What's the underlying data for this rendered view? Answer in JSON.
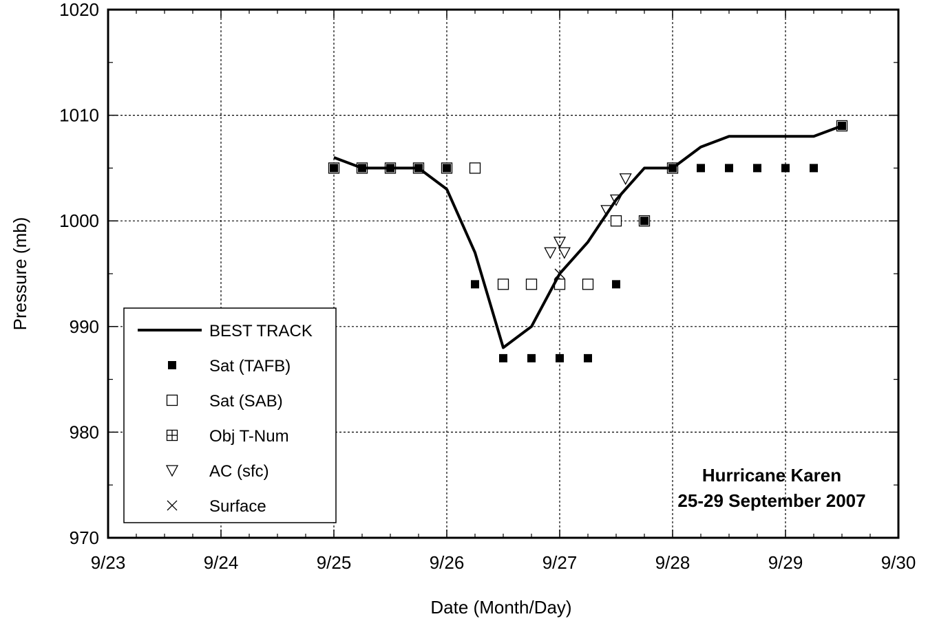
{
  "chart_data": {
    "type": "line",
    "title": "Hurricane Karen",
    "subtitle": "25-29 September 2007",
    "xlabel": "Date (Month/Day)",
    "ylabel": "Pressure (mb)",
    "xlim": [
      "9/23",
      "9/30"
    ],
    "ylim": [
      970,
      1020
    ],
    "x_ticks": [
      "9/23",
      "9/24",
      "9/25",
      "9/26",
      "9/27",
      "9/28",
      "9/29",
      "9/30"
    ],
    "y_ticks": [
      "970",
      "980",
      "990",
      "1000",
      "1010",
      "1020"
    ],
    "grid": true,
    "legend_position": "bottom-left",
    "series": [
      {
        "name": "BEST TRACK",
        "marker": "line",
        "color": "#000000",
        "points": [
          [
            "9/25 00Z",
            1006
          ],
          [
            "9/25 06Z",
            1005
          ],
          [
            "9/25 12Z",
            1005
          ],
          [
            "9/25 18Z",
            1005
          ],
          [
            "9/26 00Z",
            1003
          ],
          [
            "9/26 06Z",
            997
          ],
          [
            "9/26 12Z",
            988
          ],
          [
            "9/26 18Z",
            990
          ],
          [
            "9/27 00Z",
            995
          ],
          [
            "9/27 06Z",
            998
          ],
          [
            "9/27 12Z",
            1002
          ],
          [
            "9/27 18Z",
            1005
          ],
          [
            "9/28 00Z",
            1005
          ],
          [
            "9/28 06Z",
            1007
          ],
          [
            "9/28 12Z",
            1008
          ],
          [
            "9/28 18Z",
            1008
          ],
          [
            "9/29 00Z",
            1008
          ],
          [
            "9/29 06Z",
            1008
          ],
          [
            "9/29 12Z",
            1009
          ]
        ]
      },
      {
        "name": "Sat (TAFB)",
        "marker": "filled-square",
        "points": [
          [
            "9/25 00Z",
            1005
          ],
          [
            "9/25 06Z",
            1005
          ],
          [
            "9/25 12Z",
            1005
          ],
          [
            "9/25 18Z",
            1005
          ],
          [
            "9/26 00Z",
            1005
          ],
          [
            "9/26 06Z",
            994
          ],
          [
            "9/26 12Z",
            987
          ],
          [
            "9/26 18Z",
            987
          ],
          [
            "9/27 00Z",
            987
          ],
          [
            "9/27 06Z",
            987
          ],
          [
            "9/27 12Z",
            994
          ],
          [
            "9/27 18Z",
            1000
          ],
          [
            "9/28 00Z",
            1005
          ],
          [
            "9/28 06Z",
            1005
          ],
          [
            "9/28 12Z",
            1005
          ],
          [
            "9/28 18Z",
            1005
          ],
          [
            "9/29 00Z",
            1005
          ],
          [
            "9/29 06Z",
            1005
          ],
          [
            "9/29 12Z",
            1009
          ]
        ]
      },
      {
        "name": "Sat (SAB)",
        "marker": "open-square",
        "points": [
          [
            "9/25 00Z",
            1005
          ],
          [
            "9/25 06Z",
            1005
          ],
          [
            "9/25 12Z",
            1005
          ],
          [
            "9/25 18Z",
            1005
          ],
          [
            "9/26 00Z",
            1005
          ],
          [
            "9/26 06Z",
            1005
          ],
          [
            "9/26 12Z",
            994
          ],
          [
            "9/26 18Z",
            994
          ],
          [
            "9/27 00Z",
            994
          ],
          [
            "9/27 06Z",
            994
          ],
          [
            "9/27 12Z",
            1000
          ],
          [
            "9/27 18Z",
            1000
          ],
          [
            "9/28 00Z",
            1005
          ],
          [
            "9/29 12Z",
            1009
          ]
        ]
      },
      {
        "name": "Obj T-Num",
        "marker": "crossed-square",
        "points": []
      },
      {
        "name": "AC (sfc)",
        "marker": "open-triangle-down",
        "points": [
          [
            "9/26 22Z",
            997
          ],
          [
            "9/27 00Z",
            998
          ],
          [
            "9/27 01Z",
            997
          ],
          [
            "9/27 10Z",
            1001
          ],
          [
            "9/27 12Z",
            1002
          ],
          [
            "9/27 14Z",
            1004
          ]
        ]
      },
      {
        "name": "Surface",
        "marker": "x",
        "points": [
          [
            "9/27 00Z",
            995
          ]
        ]
      }
    ]
  }
}
